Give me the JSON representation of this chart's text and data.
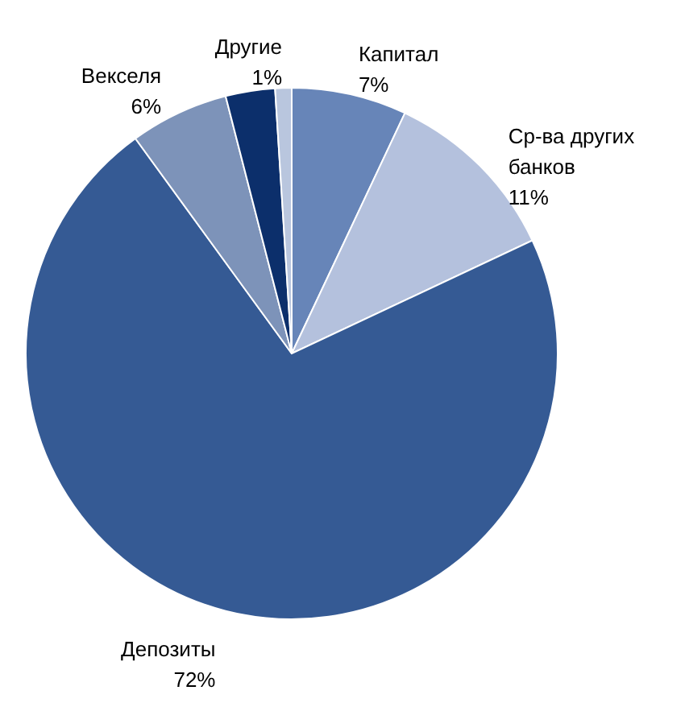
{
  "chart_data": {
    "type": "pie",
    "categories": [
      "Капитал",
      "Ср-ва других банков",
      "Депозиты",
      "Векселя",
      null,
      "Другие"
    ],
    "values": [
      7,
      11,
      72,
      6,
      3,
      1
    ],
    "value_labels": [
      "7%",
      "11%",
      "72%",
      "6%",
      null,
      "1%"
    ],
    "colors": [
      "#6785b8",
      "#b4c1dd",
      "#355a94",
      "#7d93b9",
      "#0c2f6b",
      "#b9c6de"
    ]
  }
}
